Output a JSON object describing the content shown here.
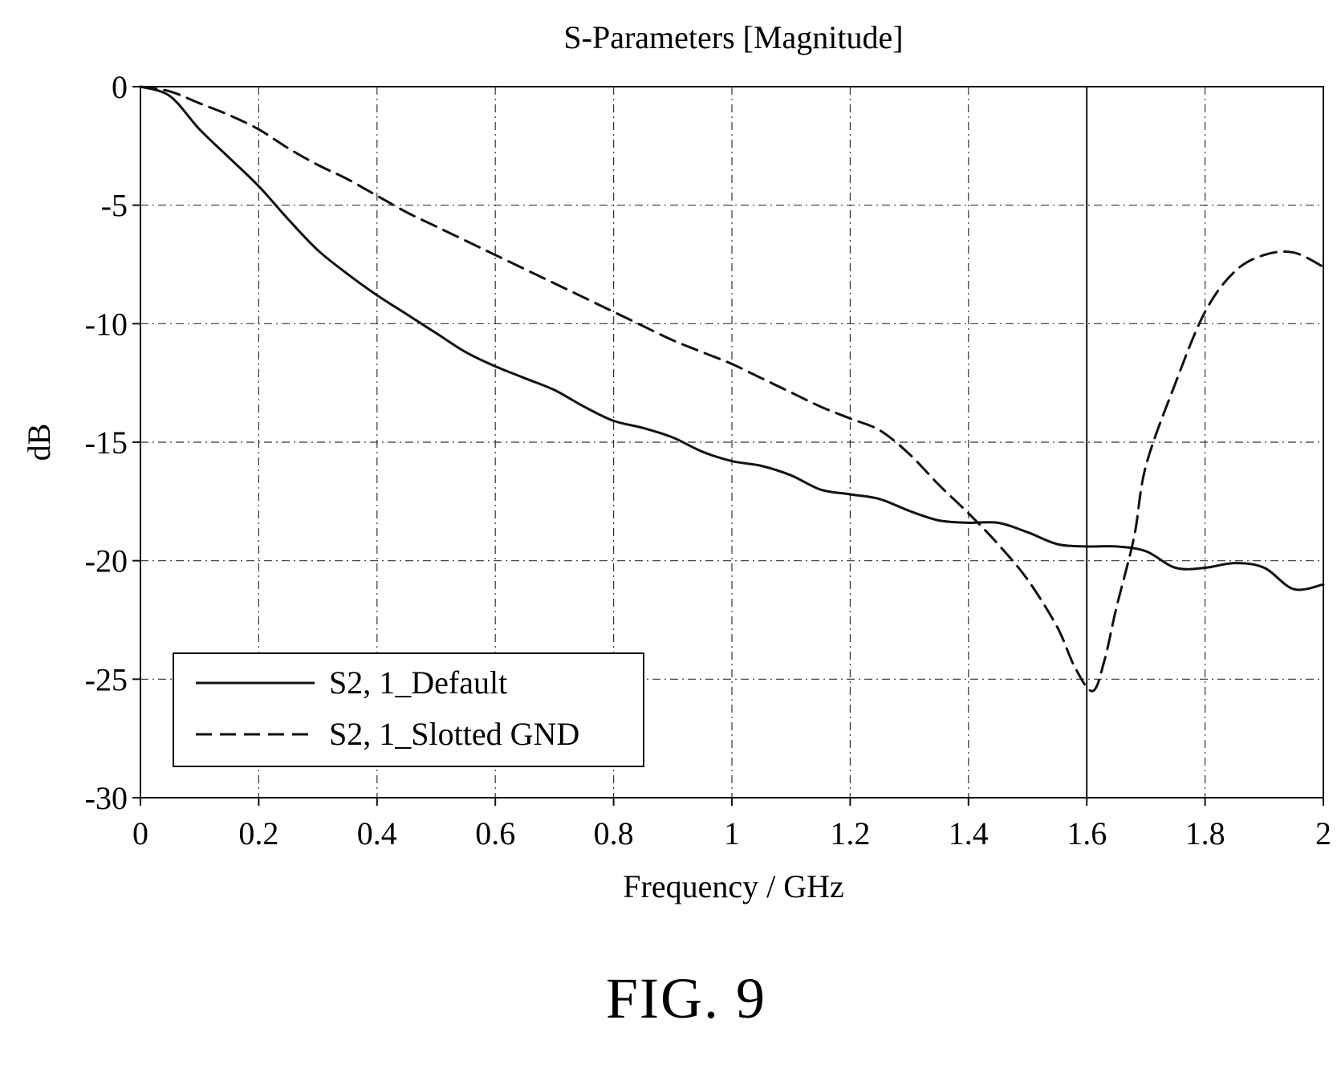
{
  "figure": {
    "caption": "FIG. 9"
  },
  "chart_data": {
    "type": "line",
    "title": "S-Parameters [Magnitude]",
    "xlabel": "Frequency / GHz",
    "ylabel": "dB",
    "xlim": [
      0,
      2
    ],
    "ylim": [
      -30,
      0
    ],
    "xticks": [
      "0",
      "0.2",
      "0.4",
      "0.6",
      "0.8",
      "1",
      "1.2",
      "1.4",
      "1.6",
      "1.8",
      "2"
    ],
    "yticks": [
      "0",
      "-5",
      "-10",
      "-15",
      "-20",
      "-25",
      "-30"
    ],
    "grid": true,
    "legend_position": "bottom-left",
    "marker_line_x": 1.6,
    "series": [
      {
        "name": "S2, 1_Default",
        "style": "solid",
        "color": "#111111",
        "x": [
          0,
          0.05,
          0.1,
          0.15,
          0.2,
          0.25,
          0.3,
          0.35,
          0.4,
          0.45,
          0.5,
          0.55,
          0.6,
          0.65,
          0.7,
          0.75,
          0.8,
          0.85,
          0.9,
          0.95,
          1.0,
          1.05,
          1.1,
          1.15,
          1.2,
          1.25,
          1.3,
          1.35,
          1.4,
          1.45,
          1.5,
          1.55,
          1.6,
          1.65,
          1.7,
          1.75,
          1.8,
          1.85,
          1.9,
          1.95,
          2.0
        ],
        "y": [
          0,
          -0.4,
          -1.8,
          -3.0,
          -4.2,
          -5.6,
          -6.9,
          -7.9,
          -8.8,
          -9.6,
          -10.4,
          -11.2,
          -11.8,
          -12.3,
          -12.8,
          -13.5,
          -14.1,
          -14.4,
          -14.8,
          -15.4,
          -15.8,
          -16.0,
          -16.4,
          -17.0,
          -17.2,
          -17.4,
          -17.9,
          -18.3,
          -18.4,
          -18.4,
          -18.8,
          -19.3,
          -19.4,
          -19.4,
          -19.6,
          -20.3,
          -20.3,
          -20.1,
          -20.3,
          -21.2,
          -21.0
        ]
      },
      {
        "name": "S2, 1_Slotted GND",
        "style": "dashed",
        "color": "#111111",
        "x": [
          0,
          0.05,
          0.1,
          0.15,
          0.2,
          0.25,
          0.3,
          0.35,
          0.4,
          0.45,
          0.5,
          0.55,
          0.6,
          0.65,
          0.7,
          0.75,
          0.8,
          0.85,
          0.9,
          0.95,
          1.0,
          1.05,
          1.1,
          1.15,
          1.2,
          1.25,
          1.3,
          1.35,
          1.4,
          1.45,
          1.5,
          1.55,
          1.58,
          1.61,
          1.63,
          1.65,
          1.68,
          1.7,
          1.75,
          1.8,
          1.85,
          1.9,
          1.95,
          2.0
        ],
        "y": [
          0,
          -0.2,
          -0.7,
          -1.2,
          -1.8,
          -2.6,
          -3.3,
          -3.9,
          -4.6,
          -5.3,
          -5.9,
          -6.5,
          -7.1,
          -7.7,
          -8.3,
          -8.9,
          -9.5,
          -10.1,
          -10.7,
          -11.2,
          -11.7,
          -12.3,
          -12.9,
          -13.5,
          -14.0,
          -14.5,
          -15.5,
          -16.8,
          -18.0,
          -19.3,
          -20.8,
          -22.8,
          -24.5,
          -25.5,
          -24.2,
          -22.0,
          -19.0,
          -16.0,
          -12.5,
          -9.5,
          -7.8,
          -7.1,
          -7.0,
          -7.6
        ]
      }
    ]
  }
}
